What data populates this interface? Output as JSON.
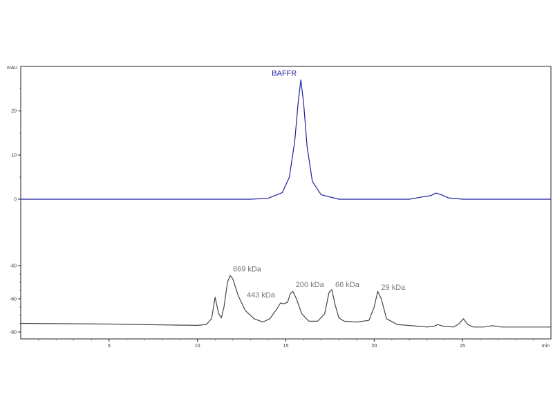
{
  "chart_data": {
    "type": "line",
    "title": "",
    "xlabel": "",
    "ylabel": "",
    "x_unit": "min",
    "y_unit": "mAU",
    "xlim": [
      0,
      30
    ],
    "ylim": [
      -80,
      28
    ],
    "x_ticks": [
      "5",
      "10",
      "15",
      "20",
      "25"
    ],
    "x_tick_values": [
      5,
      10,
      15,
      20,
      25
    ],
    "y_ticks": [
      "20",
      "10",
      "0",
      "-40",
      "-60",
      "-80"
    ],
    "y_tick_values": [
      20,
      10,
      0,
      -40,
      -60,
      -80
    ],
    "grid": false,
    "series": [
      {
        "name": "BAFFR",
        "color": "#1c1c9e",
        "x": [
          0,
          5,
          10,
          13,
          14,
          14.8,
          15.2,
          15.5,
          15.7,
          15.85,
          16.0,
          16.2,
          16.5,
          17.0,
          18,
          20,
          22,
          22.7,
          23.2,
          23.5,
          23.8,
          24.2,
          25,
          27,
          30
        ],
        "y": [
          0,
          0,
          0,
          0,
          0.2,
          1.5,
          5,
          13,
          22,
          27,
          22,
          12,
          4,
          1,
          0,
          0,
          0,
          0.5,
          0.8,
          1.4,
          1.0,
          0.3,
          0,
          0,
          0
        ]
      },
      {
        "name": "",
        "color": "#444444",
        "x": [
          0,
          5,
          8,
          10,
          10.5,
          10.8,
          11.0,
          11.2,
          11.35,
          11.5,
          11.7,
          11.85,
          12.0,
          12.3,
          12.7,
          13.2,
          13.7,
          14.1,
          14.5,
          14.7,
          14.9,
          15.1,
          15.25,
          15.4,
          15.6,
          15.9,
          16.3,
          16.8,
          17.2,
          17.45,
          17.6,
          17.8,
          18.0,
          18.3,
          19.0,
          19.7,
          20.0,
          20.2,
          20.4,
          20.7,
          21.3,
          22.5,
          23.0,
          23.4,
          23.6,
          23.9,
          24.5,
          24.8,
          25.05,
          25.3,
          25.6,
          26.2,
          26.7,
          27.2,
          28.0,
          30
        ],
        "y": [
          -74.8,
          -75.2,
          -75.7,
          -76.0,
          -75.5,
          -72,
          -59,
          -69,
          -71.5,
          -65,
          -50,
          -46,
          -48,
          -58,
          -67,
          -72,
          -74,
          -72,
          -66,
          -62.5,
          -63,
          -62,
          -57,
          -55.5,
          -60,
          -69,
          -73.5,
          -73.5,
          -69,
          -56,
          -54.5,
          -64,
          -71.5,
          -73.5,
          -74,
          -73,
          -65,
          -55.5,
          -60,
          -72,
          -75.5,
          -76.5,
          -77,
          -76.5,
          -75.5,
          -76.5,
          -77,
          -75,
          -72,
          -75.5,
          -77,
          -77,
          -76.2,
          -77,
          -77,
          -77
        ]
      }
    ],
    "annotations": [
      {
        "text": "BAFFR",
        "color": "#1c1c9e",
        "x": 15.85,
        "y": 27
      },
      {
        "text": "669 kDa",
        "color": "#777777",
        "x": 11.85,
        "y": -46
      },
      {
        "text": "443 kDa",
        "color": "#777777",
        "x": 14.7,
        "y": -62.5
      },
      {
        "text": "200 kDa",
        "color": "#777777",
        "x": 15.4,
        "y": -55.5
      },
      {
        "text": "66 kDa",
        "color": "#777777",
        "x": 17.6,
        "y": -54.5
      },
      {
        "text": "29 kDa",
        "color": "#777777",
        "x": 20.2,
        "y": -55.5
      }
    ]
  }
}
